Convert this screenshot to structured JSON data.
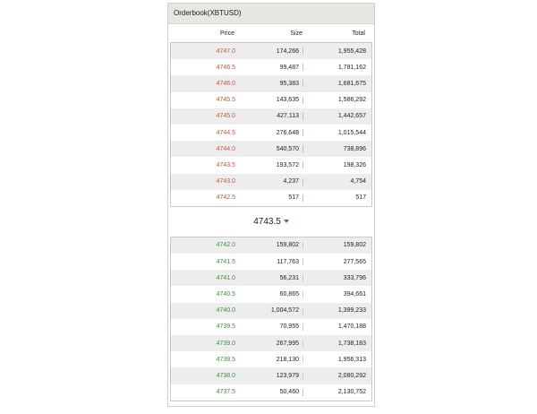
{
  "window": {
    "title": "Orderbook(XBTUSD)"
  },
  "columns": {
    "price": "Price",
    "size": "Size",
    "total": "Total"
  },
  "asks": [
    {
      "price": "4747.0",
      "size": "174,266",
      "total": "1,955,428"
    },
    {
      "price": "4746.5",
      "size": "99,487",
      "total": "1,781,162"
    },
    {
      "price": "4746.0",
      "size": "95,383",
      "total": "1,681,675"
    },
    {
      "price": "4745.5",
      "size": "143,635",
      "total": "1,586,292"
    },
    {
      "price": "4745.0",
      "size": "427,113",
      "total": "1,442,657"
    },
    {
      "price": "4744.5",
      "size": "276,648",
      "total": "1,015,544"
    },
    {
      "price": "4744.0",
      "size": "540,570",
      "total": "738,896"
    },
    {
      "price": "4743.5",
      "size": "193,572",
      "total": "198,326"
    },
    {
      "price": "4743.0",
      "size": "4,237",
      "total": "4,754"
    },
    {
      "price": "4742.5",
      "size": "517",
      "total": "517"
    }
  ],
  "mid": {
    "price": "4743.5",
    "direction_icon": "triangle-down-icon",
    "direction_color": "#3e8e3e"
  },
  "bids": [
    {
      "price": "4742.0",
      "size": "159,802",
      "total": "159,802"
    },
    {
      "price": "4741.5",
      "size": "117,763",
      "total": "277,565"
    },
    {
      "price": "4741.0",
      "size": "56,231",
      "total": "333,796"
    },
    {
      "price": "4740.5",
      "size": "60,865",
      "total": "394,661"
    },
    {
      "price": "4740.0",
      "size": "1,004,572",
      "total": "1,399,233"
    },
    {
      "price": "4739.5",
      "size": "70,955",
      "total": "1,470,188"
    },
    {
      "price": "4739.0",
      "size": "267,995",
      "total": "1,738,183"
    },
    {
      "price": "4738.5",
      "size": "218,130",
      "total": "1,956,313"
    },
    {
      "price": "4738.0",
      "size": "123,979",
      "total": "2,080,292"
    },
    {
      "price": "4737.5",
      "size": "50,460",
      "total": "2,130,752"
    }
  ],
  "colors": {
    "ask": "#c0583a",
    "bid": "#3e8e3e",
    "title_bg": "#e6e6e2",
    "row_alt": "#ededed"
  }
}
